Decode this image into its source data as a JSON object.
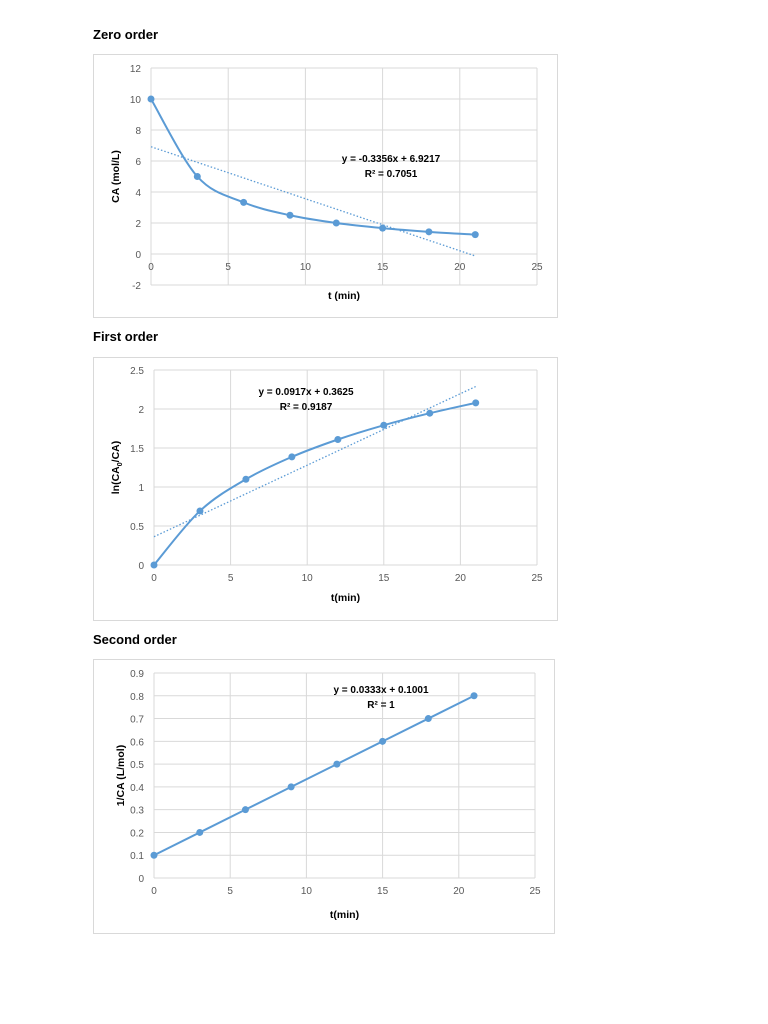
{
  "sections": [
    {
      "title": "Zero order"
    },
    {
      "title": "First order"
    },
    {
      "title": "Second order"
    }
  ],
  "colors": {
    "series": "#5b9bd5",
    "grid": "#d9d9d9",
    "tick_text": "#595959"
  },
  "chart_data": [
    {
      "type": "scatter",
      "title": "Zero order",
      "xlabel": "t (min)",
      "ylabel": "CA (mol/L)",
      "xlim": [
        0,
        25
      ],
      "ylim": [
        -2,
        12
      ],
      "xticks": [
        0,
        5,
        10,
        15,
        20,
        25
      ],
      "yticks": [
        -2,
        0,
        2,
        4,
        6,
        8,
        10,
        12
      ],
      "grid": true,
      "smooth": true,
      "series": [
        {
          "name": "CA",
          "x": [
            0,
            3,
            6,
            9,
            12,
            15,
            18,
            21
          ],
          "values": [
            10,
            5,
            3.33,
            2.5,
            2,
            1.67,
            1.43,
            1.25
          ]
        }
      ],
      "trendline": {
        "slope": -0.3356,
        "intercept": 6.9217,
        "equation": "y = -0.3356x + 6.9217",
        "r2": "R² = 0.7051"
      }
    },
    {
      "type": "scatter",
      "title": "First order",
      "xlabel": "t(min)",
      "ylabel": "ln(CA0/CA)",
      "xlim": [
        0,
        25
      ],
      "ylim": [
        0,
        2.5
      ],
      "xticks": [
        0,
        5,
        10,
        15,
        20,
        25
      ],
      "yticks": [
        0,
        0.5,
        1,
        1.5,
        2,
        2.5
      ],
      "grid": true,
      "smooth": true,
      "series": [
        {
          "name": "ln(CA0/CA)",
          "x": [
            0,
            3,
            6,
            9,
            12,
            15,
            18,
            21
          ],
          "values": [
            0,
            0.693,
            1.099,
            1.386,
            1.609,
            1.792,
            1.946,
            2.079
          ]
        }
      ],
      "trendline": {
        "slope": 0.0917,
        "intercept": 0.3625,
        "equation": "y = 0.0917x + 0.3625",
        "r2": "R² = 0.9187"
      }
    },
    {
      "type": "scatter",
      "title": "Second order",
      "xlabel": "t(min)",
      "ylabel": "1/CA (L/mol)",
      "xlim": [
        0,
        25
      ],
      "ylim": [
        0,
        0.9
      ],
      "xticks": [
        0,
        5,
        10,
        15,
        20,
        25
      ],
      "yticks": [
        0,
        0.1,
        0.2,
        0.3,
        0.4,
        0.5,
        0.6,
        0.7,
        0.8,
        0.9
      ],
      "grid": true,
      "smooth": false,
      "series": [
        {
          "name": "1/CA",
          "x": [
            0,
            3,
            6,
            9,
            12,
            15,
            18,
            21
          ],
          "values": [
            0.1,
            0.2,
            0.3,
            0.4,
            0.5,
            0.6,
            0.7,
            0.8
          ]
        }
      ],
      "trendline": {
        "slope": 0.0333,
        "intercept": 0.1001,
        "equation": "y = 0.0333x + 0.1001",
        "r2": "R² = 1",
        "hidden": true
      }
    }
  ]
}
